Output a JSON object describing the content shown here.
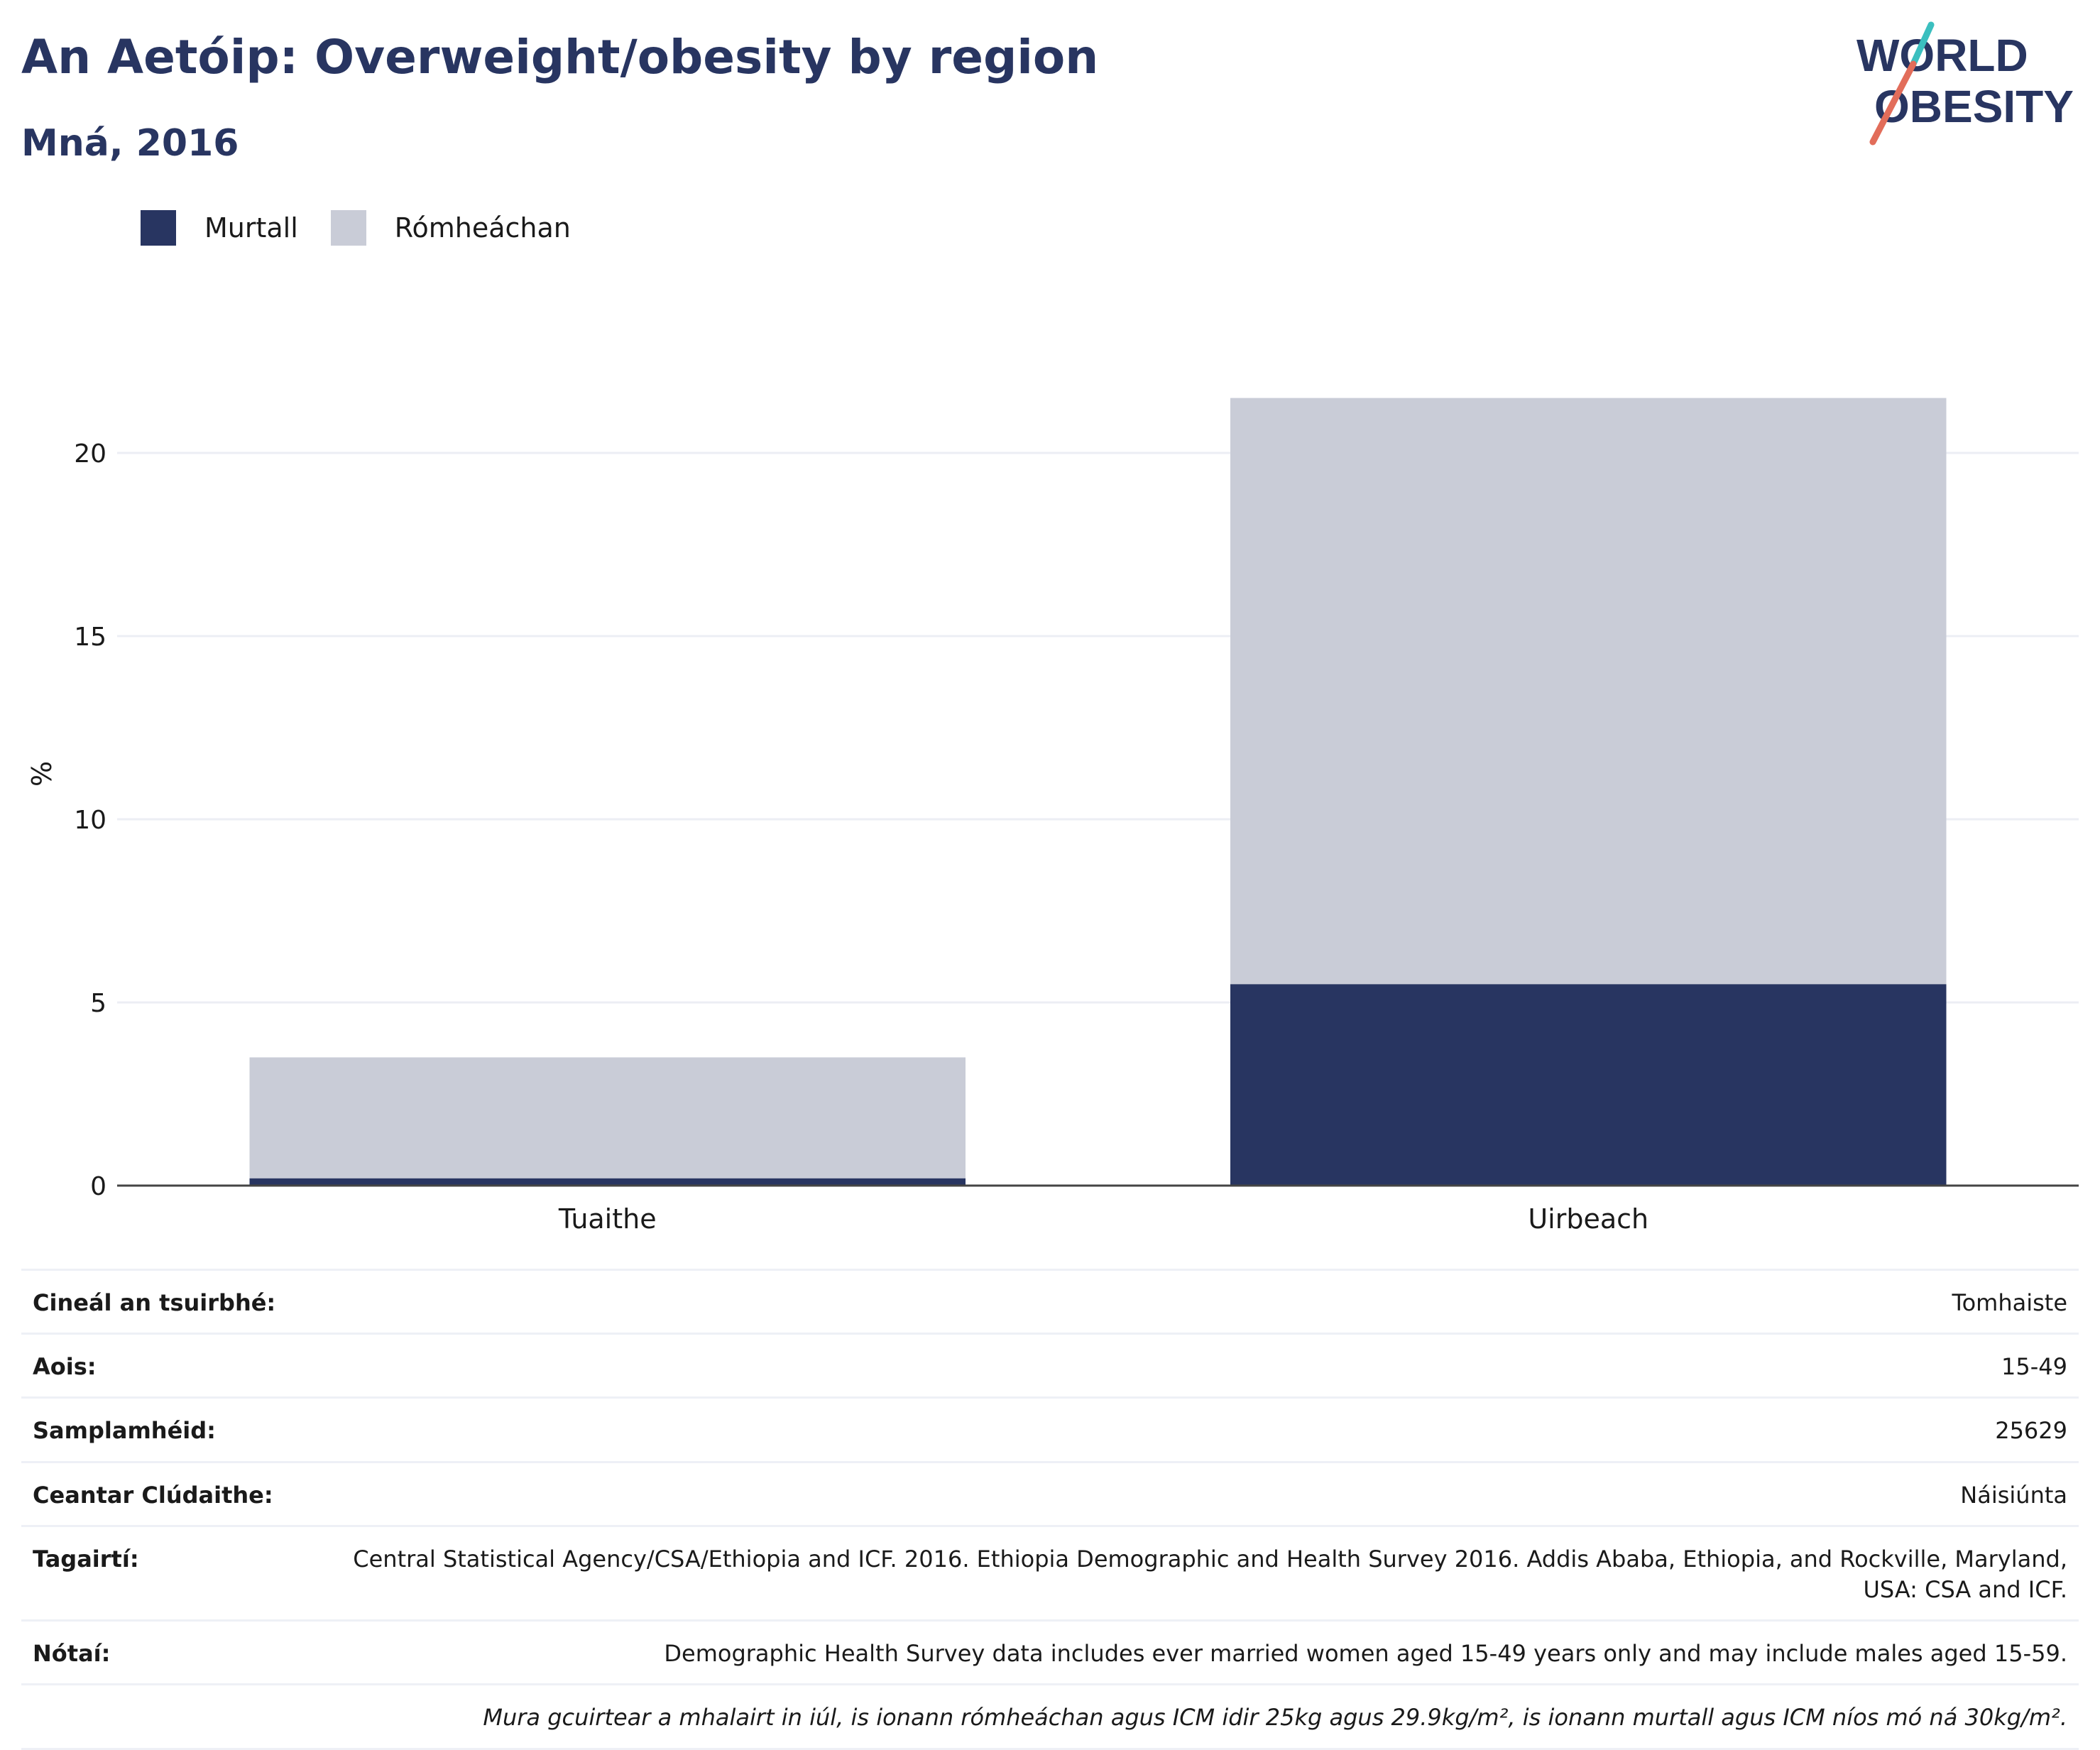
{
  "header": {
    "title": "An Aetóip: Overweight/obesity by region",
    "subtitle": "Mná, 2016",
    "logo_text_top": "WORLD",
    "logo_text_bottom": "OBESITY"
  },
  "legend": {
    "items": [
      {
        "label": "Murtall",
        "color": "#283561"
      },
      {
        "label": "Rómheáchan",
        "color": "#c9ccd7"
      }
    ]
  },
  "chart_data": {
    "type": "bar",
    "stacked": true,
    "categories": [
      "Tuaithe",
      "Uirbeach"
    ],
    "series": [
      {
        "name": "Murtall",
        "color": "#283561",
        "values": [
          0.2,
          5.5
        ]
      },
      {
        "name": "Rómheáchan",
        "color": "#c9ccd7",
        "values": [
          3.3,
          16.0
        ]
      }
    ],
    "ylabel": "%",
    "yticks": [
      "0",
      "5",
      "10",
      "15",
      "20"
    ],
    "ylim": [
      0,
      22.5
    ],
    "grid": true,
    "legend_position": "top-left"
  },
  "meta": {
    "rows": [
      {
        "key": "Cineál an tsuirbhé:",
        "value": "Tomhaiste"
      },
      {
        "key": "Aois:",
        "value": "15-49"
      },
      {
        "key": "Samplamhéid:",
        "value": "25629"
      },
      {
        "key": "Ceantar Clúdaithe:",
        "value": "Náisiúnta"
      },
      {
        "key": "Tagairtí:",
        "value": "Central Statistical Agency/CSA/Ethiopia and ICF. 2016. Ethiopia Demographic and Health Survey 2016. Addis Ababa, Ethiopia, and Rockville, Maryland, USA: CSA and ICF."
      },
      {
        "key": "Nótaí:",
        "value": "Demographic Health Survey data includes ever married women aged 15-49 years only and may include males aged 15-59."
      }
    ],
    "footnote": "Mura gcuirtear a mhalairt in iúl, is ionann rómheáchan agus ICM idir 25kg agus 29.9kg/m², is ionann murtall agus ICM níos mó ná 30kg/m²."
  }
}
